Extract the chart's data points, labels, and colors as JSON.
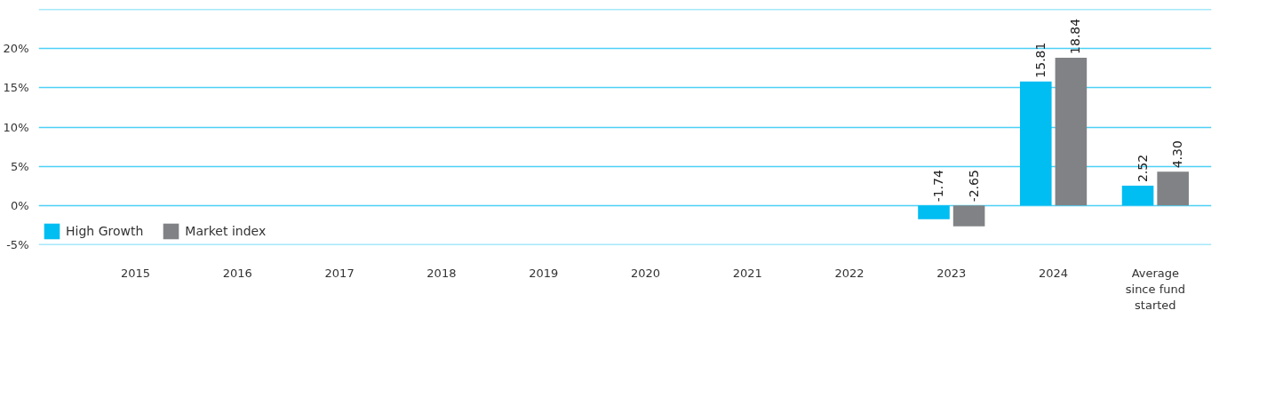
{
  "chart_data": {
    "type": "bar",
    "categories": [
      "2015",
      "2016",
      "2017",
      "2018",
      "2019",
      "2020",
      "2021",
      "2022",
      "2023",
      "2024",
      "Average since fund started"
    ],
    "series": [
      {
        "name": "High Growth",
        "color": "#00bdf2",
        "values": [
          null,
          null,
          null,
          null,
          null,
          null,
          null,
          null,
          -1.74,
          15.81,
          2.52
        ]
      },
      {
        "name": "Market index",
        "color": "#808285",
        "values": [
          null,
          null,
          null,
          null,
          null,
          null,
          null,
          null,
          -2.65,
          18.84,
          4.3
        ]
      }
    ],
    "value_labels": [
      [
        null,
        null,
        null,
        null,
        null,
        null,
        null,
        null,
        "-1.74",
        "15.81",
        "2.52"
      ],
      [
        null,
        null,
        null,
        null,
        null,
        null,
        null,
        null,
        "-2.65",
        "18.84",
        "4.30"
      ]
    ],
    "ylim": [
      -5,
      25
    ],
    "yticks": [
      {
        "value": -5,
        "label": "-5%"
      },
      {
        "value": 0,
        "label": "0%"
      },
      {
        "value": 5,
        "label": "5%"
      },
      {
        "value": 10,
        "label": "10%"
      },
      {
        "value": 15,
        "label": "15%"
      },
      {
        "value": 20,
        "label": "20%"
      },
      {
        "value": 25,
        "label": null
      }
    ],
    "grid": "y",
    "legend": "bottom left"
  }
}
